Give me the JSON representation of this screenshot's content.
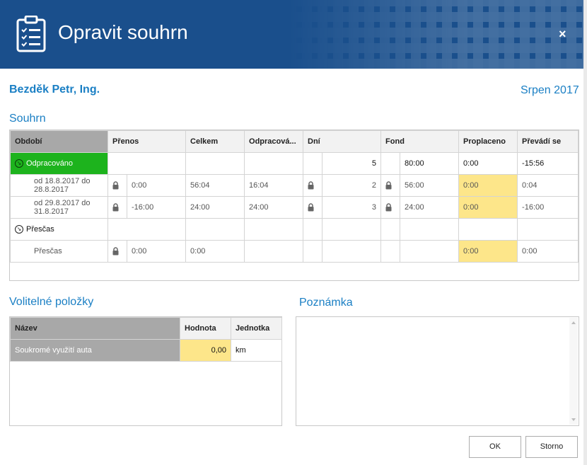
{
  "dialog": {
    "title": "Opravit souhrn",
    "close_label": "×",
    "icon": "clipboard-checklist-icon"
  },
  "person": "Bezděk Petr, Ing.",
  "period": "Srpen 2017",
  "summary": {
    "title": "Souhrn",
    "columns": [
      "Období",
      "Přenos",
      "Celkem",
      "Odpracová...",
      "Dní",
      "Fond",
      "Proplaceno",
      "Převádí se"
    ],
    "groups": [
      {
        "label": "Odpracováno",
        "dni": "5",
        "fond": "80:00",
        "proplaceno": "0:00",
        "prevadi": "-15:56",
        "rows": [
          {
            "obdobi": "od 18.8.2017 do 28.8.2017",
            "prenos": "0:00",
            "celkem": "56:04",
            "odpracovano": "16:04",
            "dni": "2",
            "fond": "56:00",
            "proplaceno": "0:00",
            "prevadi": "0:04"
          },
          {
            "obdobi": "od 29.8.2017 do 31.8.2017",
            "prenos": "-16:00",
            "celkem": "24:00",
            "odpracovano": "24:00",
            "dni": "3",
            "fond": "24:00",
            "proplaceno": "0:00",
            "prevadi": "-16:00"
          }
        ]
      },
      {
        "label": "Přesčas",
        "rows": [
          {
            "obdobi": "Přesčas",
            "prenos": "0:00",
            "celkem": "0:00",
            "proplaceno": "0:00",
            "prevadi": "0:00"
          }
        ]
      }
    ]
  },
  "optional": {
    "title": "Volitelné položky",
    "columns": [
      "Název",
      "Hodnota",
      "Jednotka"
    ],
    "rows": [
      {
        "nazev": "Soukromé využití auta",
        "hodnota": "0,00",
        "jednotka": "km"
      }
    ]
  },
  "note": {
    "title": "Poznámka",
    "value": ""
  },
  "buttons": {
    "ok": "OK",
    "cancel": "Storno"
  },
  "colors": {
    "header_bg": "#1a4f8c",
    "accent_text": "#1a7fc4",
    "group_highlight": "#1db31d",
    "editable_cell": "#fde68a",
    "selected_header": "#a8a8a8"
  }
}
